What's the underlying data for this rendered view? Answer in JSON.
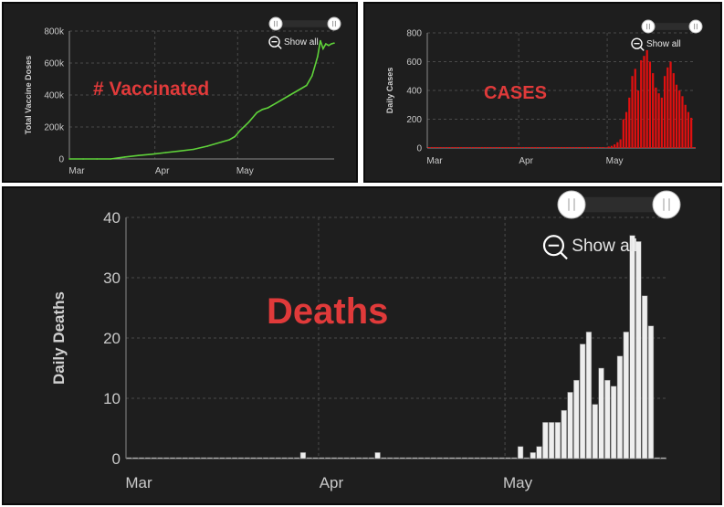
{
  "charts": [
    {
      "id": "vacc",
      "chart_data": {
        "type": "line",
        "title": "",
        "overlay_label": "# Vaccinated",
        "ylabel": "Total Vaccine Doses",
        "xlabel": "",
        "ylim": [
          0,
          800000
        ],
        "yticks": [
          0,
          200000,
          400000,
          600000,
          800000
        ],
        "ytick_labels": [
          "0",
          "200k",
          "400k",
          "600k",
          "800k"
        ],
        "x_range": [
          0,
          96
        ],
        "xticks": [
          {
            "x": 0,
            "label": "Mar"
          },
          {
            "x": 31,
            "label": "Apr"
          },
          {
            "x": 61,
            "label": "May"
          }
        ],
        "x": [
          0,
          5,
          10,
          15,
          20,
          25,
          30,
          35,
          40,
          45,
          50,
          55,
          58,
          60,
          62,
          65,
          68,
          70,
          72,
          75,
          80,
          84,
          86,
          88,
          90,
          91,
          92,
          93,
          94,
          95,
          96
        ],
        "series": [
          {
            "name": "",
            "color": "#5fd23a",
            "values": [
              0,
              0,
              0,
              0,
              12000,
              22000,
              30000,
              40000,
              50000,
              60000,
              80000,
              105000,
              120000,
              140000,
              180000,
              230000,
              290000,
              310000,
              320000,
              350000,
              400000,
              440000,
              460000,
              520000,
              640000,
              740000,
              690000,
              720000,
              710000,
              720000,
              725000
            ]
          }
        ],
        "grid": true,
        "show_all_label": "Show all",
        "accent_color": "#e03a3a"
      }
    },
    {
      "id": "cases",
      "chart_data": {
        "type": "bar",
        "title": "",
        "overlay_label": "CASES",
        "ylabel": "Daily Cases",
        "xlabel": "",
        "ylim": [
          0,
          800
        ],
        "yticks": [
          0,
          200,
          400,
          600,
          800
        ],
        "ytick_labels": [
          "0",
          "200",
          "400",
          "600",
          "800"
        ],
        "x_range": [
          0,
          91
        ],
        "xticks": [
          {
            "x": 0,
            "label": "Mar"
          },
          {
            "x": 31,
            "label": "Apr"
          },
          {
            "x": 61,
            "label": "May"
          }
        ],
        "series": [
          {
            "name": "",
            "color": "#e01010",
            "values": [
              0,
              0,
              0,
              0,
              0,
              0,
              0,
              0,
              0,
              0,
              0,
              0,
              0,
              0,
              0,
              0,
              0,
              0,
              0,
              0,
              0,
              0,
              0,
              0,
              0,
              0,
              0,
              0,
              0,
              0,
              0,
              0,
              0,
              0,
              0,
              0,
              0,
              0,
              0,
              0,
              0,
              0,
              0,
              0,
              0,
              0,
              0,
              0,
              0,
              0,
              0,
              0,
              0,
              0,
              0,
              0,
              0,
              0,
              0,
              0,
              5,
              10,
              15,
              25,
              40,
              60,
              200,
              250,
              350,
              500,
              550,
              400,
              610,
              640,
              680,
              600,
              520,
              420,
              380,
              350,
              500,
              560,
              600,
              520,
              440,
              400,
              360,
              300,
              250,
              210,
              0
            ]
          }
        ],
        "grid": true,
        "show_all_label": "Show all",
        "accent_color": "#e03a3a"
      }
    },
    {
      "id": "deaths",
      "chart_data": {
        "type": "bar",
        "title": "",
        "overlay_label": "Deaths",
        "ylabel": "Daily Deaths",
        "xlabel": "",
        "ylim": [
          0,
          40
        ],
        "yticks": [
          0,
          10,
          20,
          30,
          40
        ],
        "ytick_labels": [
          "0",
          "10",
          "20",
          "30",
          "40"
        ],
        "x_range": [
          0,
          87
        ],
        "xticks": [
          {
            "x": 0,
            "label": "Mar"
          },
          {
            "x": 31,
            "label": "Apr"
          },
          {
            "x": 61,
            "label": "May"
          }
        ],
        "series": [
          {
            "name": "",
            "color": "#eeeeee",
            "values": [
              0,
              0,
              0,
              0,
              0,
              0,
              0,
              0,
              0,
              0,
              0,
              0,
              0,
              0,
              0,
              0,
              0,
              0,
              0,
              0,
              0,
              0,
              0,
              0,
              0,
              0,
              0,
              0,
              1,
              0,
              0,
              0,
              0,
              0,
              0,
              0,
              0,
              0,
              0,
              0,
              1,
              0,
              0,
              0,
              0,
              0,
              0,
              0,
              0,
              0,
              0,
              0,
              0,
              0,
              0,
              0,
              0,
              0,
              0,
              0,
              0,
              0,
              0,
              2,
              0,
              1,
              2,
              6,
              6,
              6,
              8,
              11,
              13,
              19,
              21,
              9,
              15,
              13,
              12,
              17,
              21,
              37,
              36,
              27,
              22,
              0,
              0
            ]
          }
        ],
        "grid": true,
        "show_all_label": "Show all",
        "accent_color": "#e03a3a"
      }
    }
  ]
}
